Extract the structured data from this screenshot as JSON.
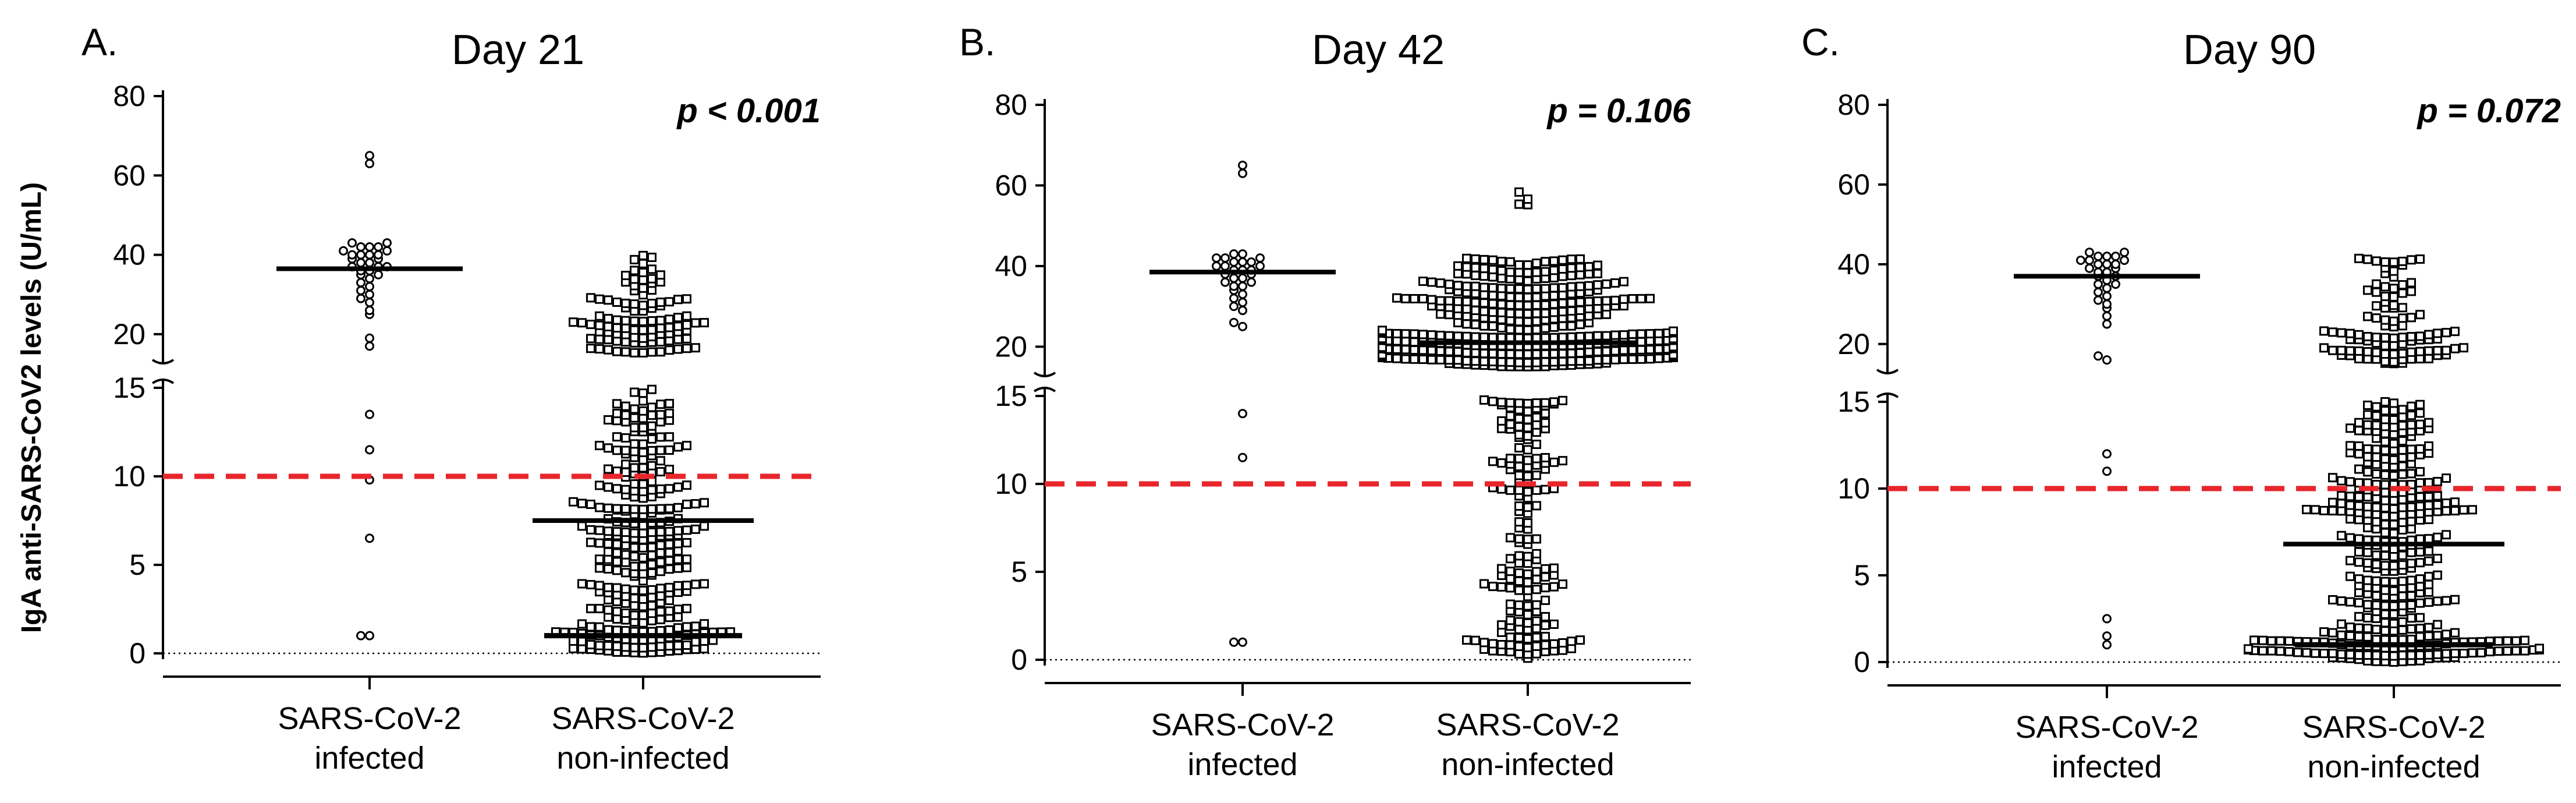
{
  "chart_data": [
    {
      "type": "scatter",
      "panel_letter": "A.",
      "title": "Day 21",
      "p_value": "p < 0.001",
      "ylabel": "IgA anti-SARS-CoV2 levels (U/mL)",
      "y_break": {
        "lower_range": [
          0,
          15
        ],
        "upper_range": [
          15,
          80
        ]
      },
      "y_ticks_lower": [
        "0",
        "5",
        "10",
        "15"
      ],
      "y_ticks_upper": [
        "20",
        "40",
        "60",
        "80"
      ],
      "threshold": 10,
      "categories": [
        "SARS-CoV-2\ninfected",
        "SARS-CoV-2\nnon-infected"
      ],
      "series": [
        {
          "name": "SARS-CoV-2 infected",
          "marker": "circle",
          "median": 36.5,
          "values": [
            63,
            65,
            43,
            42,
            42,
            42,
            43,
            41,
            41,
            40,
            40,
            40,
            40,
            39,
            39,
            38,
            38,
            37,
            37,
            37,
            36,
            36,
            35,
            35,
            34,
            33,
            32,
            31,
            30,
            29,
            28,
            26,
            25,
            19,
            17,
            13.5,
            11.5,
            9.8,
            6.5,
            1,
            1
          ]
        },
        {
          "name": "SARS-CoV-2 non-infected",
          "marker": "square",
          "median": 7.5,
          "lower_bar": 1,
          "values": []
        }
      ]
    },
    {
      "type": "scatter",
      "panel_letter": "B.",
      "title": "Day 42",
      "p_value": "p = 0.106",
      "y_break": {
        "lower_range": [
          0,
          15
        ],
        "upper_range": [
          15,
          80
        ]
      },
      "y_ticks_lower": [
        "0",
        "5",
        "10",
        "15"
      ],
      "y_ticks_upper": [
        "20",
        "40",
        "60",
        "80"
      ],
      "threshold": 10,
      "categories": [
        "SARS-CoV-2\ninfected",
        "SARS-CoV-2\nnon-infected"
      ],
      "series": [
        {
          "name": "SARS-CoV-2 infected",
          "marker": "circle",
          "median": 38.5,
          "values": [
            63,
            65,
            43,
            43,
            42,
            42,
            42,
            41,
            41,
            41,
            40,
            40,
            40,
            39,
            39,
            39,
            38,
            38,
            37,
            37,
            36,
            36,
            35,
            35,
            34,
            33,
            32,
            31,
            30,
            29,
            26,
            25,
            14,
            11.5,
            1,
            1
          ]
        },
        {
          "name": "SARS-CoV-2 non-infected",
          "marker": "square",
          "median": 21,
          "values": []
        }
      ]
    },
    {
      "type": "scatter",
      "panel_letter": "C.",
      "title": "Day 90",
      "p_value": "p = 0.072",
      "y_break": {
        "lower_range": [
          0,
          15
        ],
        "upper_range": [
          15,
          80
        ]
      },
      "y_ticks_lower": [
        "0",
        "5",
        "10",
        "15"
      ],
      "y_ticks_upper": [
        "20",
        "40",
        "60",
        "80"
      ],
      "threshold": 10,
      "categories": [
        "SARS-CoV-2\ninfected",
        "SARS-CoV-2\nnon-infected"
      ],
      "series": [
        {
          "name": "SARS-CoV-2 infected",
          "marker": "circle",
          "median": 37,
          "values": [
            43,
            43,
            42,
            42,
            42,
            41,
            41,
            41,
            40,
            40,
            40,
            39,
            39,
            38,
            38,
            37,
            37,
            36,
            35,
            35,
            34,
            33,
            32,
            31,
            30,
            29,
            27,
            25,
            17,
            16,
            12,
            11,
            2.5,
            1.5,
            1
          ]
        },
        {
          "name": "SARS-CoV-2 non-infected",
          "marker": "square",
          "median": 6.8,
          "lower_bar": 1,
          "values": []
        }
      ]
    }
  ],
  "colors": {
    "threshold": "#e8262b",
    "axis": "#000000"
  }
}
